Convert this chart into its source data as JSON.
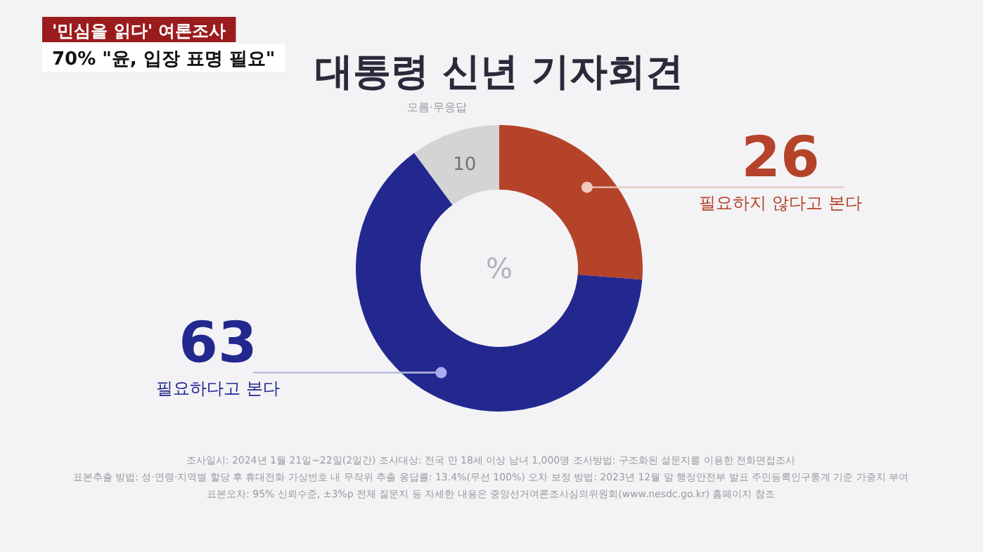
{
  "chart_data": {
    "type": "donut",
    "title": "대통령 신년 기자회견",
    "categories": [
      "필요하지 않다고 본다",
      "필요하다고 본다",
      "모름·무응답"
    ],
    "values": [
      26,
      63,
      10
    ],
    "colors": [
      "#b5432a",
      "#23288f",
      "#d4d4d4"
    ],
    "data_labels": true,
    "annotations": [
      "'민심을 읽다' 여론조사",
      "70% \"윤, 입장 표명 필요\"",
      "%",
      "조사일시: 2024년 1월 21일~22일(2일간)   조사대상: 전국 만 18세 이상 남녀 1,000명   조사방법: 구조화된 설문지를 이용한 전화면접조사",
      "표본추출 방법: 성·연령·지역별 할당 후 휴대전화 가상번호 내 무작위 추출   응답률: 13.4%(무선 100%)   오차 보정 방법: 2023년 12월 말 행정안전부 발표 주민등록인구통계 기준 가중치 부여",
      "표본오차: 95% 신뢰수준, ±3%p   전체 질문지 등 자세한 내용은 중앙선거여론조사심의위원회(www.nesdc.go.kr) 홈페이지 참조"
    ]
  }
}
